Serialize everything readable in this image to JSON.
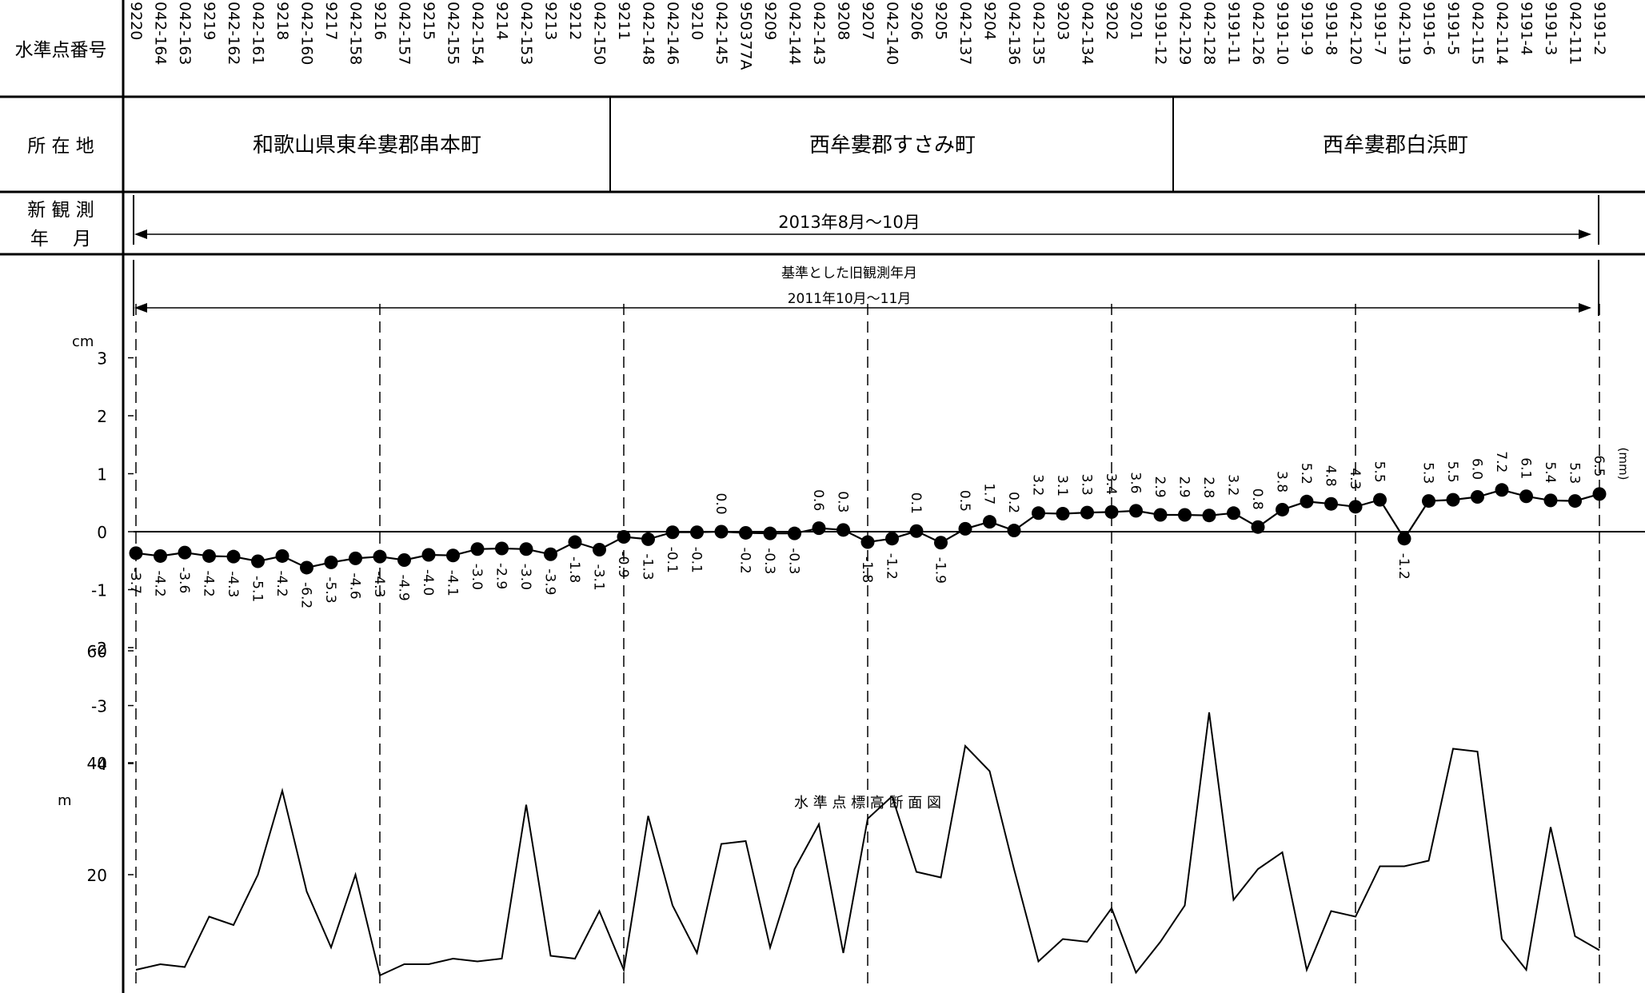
{
  "headers": {
    "station_id": "水準点番号",
    "location": "所 在 地",
    "obs_line1": "新 観 測",
    "obs_line2": "年　 月"
  },
  "locations": [
    "和歌山県東牟婁郡串本町",
    "西牟婁郡すさみ町",
    "西牟婁郡白浜町"
  ],
  "new_obs_period": "2013年8月～10月",
  "base_label": "基準とした旧観測年月",
  "base_period": "2011年10月～11月",
  "elev_title": "水 準 点 標 高 断 面 図",
  "chart_data": [
    {
      "type": "line",
      "title": "",
      "ylabel": "cm",
      "unit_note": "(mm)",
      "ylim": [
        -4,
        3
      ],
      "yticks": [
        "3",
        "2",
        "1",
        "0",
        "-1",
        "-2",
        "-3",
        "-4"
      ],
      "stations": [
        "9220",
        "042-164",
        "042-163",
        "9219",
        "042-162",
        "042-161",
        "9218",
        "042-160",
        "9217",
        "042-158",
        "9216",
        "042-157",
        "9215",
        "042-155",
        "042-154",
        "9214",
        "042-153",
        "9213",
        "9212",
        "042-150",
        "9211",
        "042-148",
        "042-146",
        "9210",
        "042-145",
        "950377A",
        "9209",
        "042-144",
        "042-143",
        "9208",
        "9207",
        "042-140",
        "9206",
        "9205",
        "042-137",
        "9204",
        "042-136",
        "042-135",
        "9203",
        "042-134",
        "9202",
        "9201",
        "9191-12",
        "042-129",
        "042-128",
        "9191-11",
        "042-126",
        "9191-10",
        "9191-9",
        "9191-8",
        "042-120",
        "9191-7",
        "042-119",
        "9191-6",
        "9191-5",
        "042-115",
        "042-114",
        "9191-4",
        "9191-3",
        "042-111",
        "9191-2"
      ],
      "point_index": [
        0,
        1,
        2,
        3,
        4,
        5,
        6,
        7,
        8,
        9,
        10,
        11,
        12,
        13,
        14,
        15,
        16,
        17,
        18,
        19,
        20,
        21,
        22,
        23,
        24,
        25,
        26,
        27,
        28,
        29,
        30,
        31,
        32,
        33,
        34,
        35,
        36,
        37,
        38,
        39,
        40,
        41,
        42,
        43,
        44,
        45,
        46,
        47,
        48,
        49,
        50,
        51,
        52,
        53,
        54,
        55,
        56,
        57,
        58,
        59,
        60
      ],
      "values_mm": [
        -3.7,
        -4.2,
        -3.6,
        -4.2,
        -4.3,
        -5.1,
        -4.2,
        -6.2,
        -5.3,
        -4.6,
        -4.3,
        -4.9,
        -4.0,
        -4.1,
        -3.0,
        -2.9,
        -3.0,
        -3.9,
        -1.8,
        -3.1,
        -0.9,
        -1.3,
        -0.1,
        -0.1,
        0.0,
        -0.2,
        -0.3,
        -0.3,
        0.6,
        0.3,
        -1.8,
        -1.2,
        0.1,
        -1.9,
        0.5,
        1.7,
        0.2,
        3.2,
        3.1,
        3.3,
        3.4,
        3.6,
        2.9,
        2.9,
        2.8,
        3.2,
        0.8,
        3.8,
        5.2,
        4.8,
        4.3,
        5.5,
        -1.2,
        5.3,
        5.5,
        6.0,
        7.2,
        6.1,
        5.4,
        5.3,
        6.5
      ],
      "labels": [
        "-3.7",
        "-4.2",
        "-3.6",
        "-4.2",
        "-4.3",
        "-5.1",
        "-4.2",
        "-6.2",
        "-5.3",
        "-4.6",
        "-4.3",
        "-4.9",
        "-4.0",
        "-4.1",
        "-3.0",
        "-2.9",
        "-3.0",
        "-3.9",
        "-1.8",
        "-3.1",
        "-0.9",
        "-1.3",
        "-0.1",
        "-0.1",
        "0.0",
        "-0.2",
        "-0.3",
        "-0.3",
        "0.6",
        "0.3",
        "-1.8",
        "-1.2",
        "0.1",
        "-1.9",
        "0.5",
        "1.7",
        "0.2",
        "3.2",
        "3.1",
        "3.3",
        "3.4",
        "3.6",
        "2.9",
        "2.9",
        "2.8",
        "3.2",
        "0.8",
        "3.8",
        "5.2",
        "4.8",
        "4.3",
        "5.5",
        "-1.2",
        "5.3",
        "5.5",
        "6.0",
        "7.2",
        "6.1",
        "5.4",
        "5.3",
        "6.5"
      ]
    },
    {
      "type": "line",
      "title": "水 準 点 標 高 断 面 図",
      "ylabel": "m",
      "ylim": [
        0,
        65
      ],
      "yticks": [
        "60",
        "40",
        "20"
      ],
      "elevations_m": [
        3,
        4,
        3.5,
        12.5,
        11,
        20,
        35,
        17,
        7,
        20,
        2,
        4,
        4,
        5,
        4.5,
        5,
        32.5,
        5.5,
        5,
        13.5,
        3,
        30.5,
        14.5,
        6,
        25.5,
        26,
        7,
        21,
        29,
        6,
        30,
        34,
        20.5,
        19.5,
        43,
        38.5,
        21,
        4.5,
        8.5,
        8,
        14,
        2.5,
        8,
        14.5,
        49,
        15.5,
        21,
        24,
        3,
        13.5,
        12.5,
        21.5,
        21.5,
        22.5,
        42.5,
        42,
        8.5,
        3,
        28.5,
        9,
        6.5
      ]
    }
  ]
}
